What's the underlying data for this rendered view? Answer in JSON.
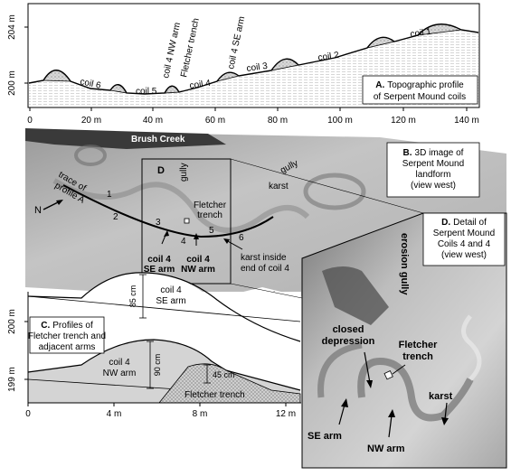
{
  "panel_a": {
    "y_label_top": "204 m",
    "y_label_bottom": "200 m",
    "x_ticks": [
      "0",
      "20 m",
      "40 m",
      "60 m",
      "80 m",
      "100 m",
      "120 m",
      "140 m"
    ],
    "coils": [
      "coil 1",
      "coil 2",
      "coil 3",
      "coil 4 SE arm",
      "Fletcher trench",
      "coil 4 NW arm",
      "coil 4",
      "coil 5",
      "coil 6"
    ],
    "caption_letter": "A.",
    "caption_line1": "Topographic profile",
    "caption_line2": "of Serpent Mound coils"
  },
  "panel_b": {
    "title": "Brush Creek",
    "trace_line1": "trace of",
    "trace_line2": "profile A",
    "north": "N",
    "numbers": [
      "1",
      "2",
      "3",
      "4",
      "5",
      "6"
    ],
    "fletcher": "Fletcher trench",
    "gully_d": "gully",
    "gully_right": "gully",
    "karst": "karst",
    "coil4_se": "coil 4 SE arm",
    "coil4_nw": "coil 4 NW arm",
    "karst_inside_line1": "karst inside",
    "karst_inside_line2": "end of coil 4",
    "karst_lower": "karst",
    "gully_lower": "gully",
    "d_marker": "D",
    "caption_letter": "B.",
    "caption_line1": "3D image of",
    "caption_line2": "Serpent Mound",
    "caption_line3": "landform",
    "caption_line4": "(view west)"
  },
  "panel_c": {
    "y_label_top": "200 m",
    "y_label_bottom": "199 m",
    "x_ticks": [
      "0",
      "4 m",
      "8 m",
      "12 m"
    ],
    "se_arm_line1": "coil 4",
    "se_arm_line2": "SE arm",
    "se_height": "85 cm",
    "nw_arm_line1": "coil 4",
    "nw_arm_line2": "NW arm",
    "nw_height": "90 cm",
    "trench_depth": "45 cm",
    "trench_label": "Fletcher trench",
    "caption_letter": "C.",
    "caption_line1": "Profiles of",
    "caption_line2": "Fletcher trench and",
    "caption_line3": "adjacent arms"
  },
  "panel_d": {
    "caption_letter": "D.",
    "caption_line1": "Detail of",
    "caption_line2": "Serpent Mound",
    "caption_line3": "Coils 4 and 4",
    "caption_line4": "(view west)",
    "erosion_gully": "erosion gully",
    "closed_line1": "closed",
    "closed_line2": "depression",
    "fletcher_line1": "Fletcher",
    "fletcher_line2": "trench",
    "karst": "karst",
    "se_arm": "SE arm",
    "nw_arm": "NW arm"
  }
}
